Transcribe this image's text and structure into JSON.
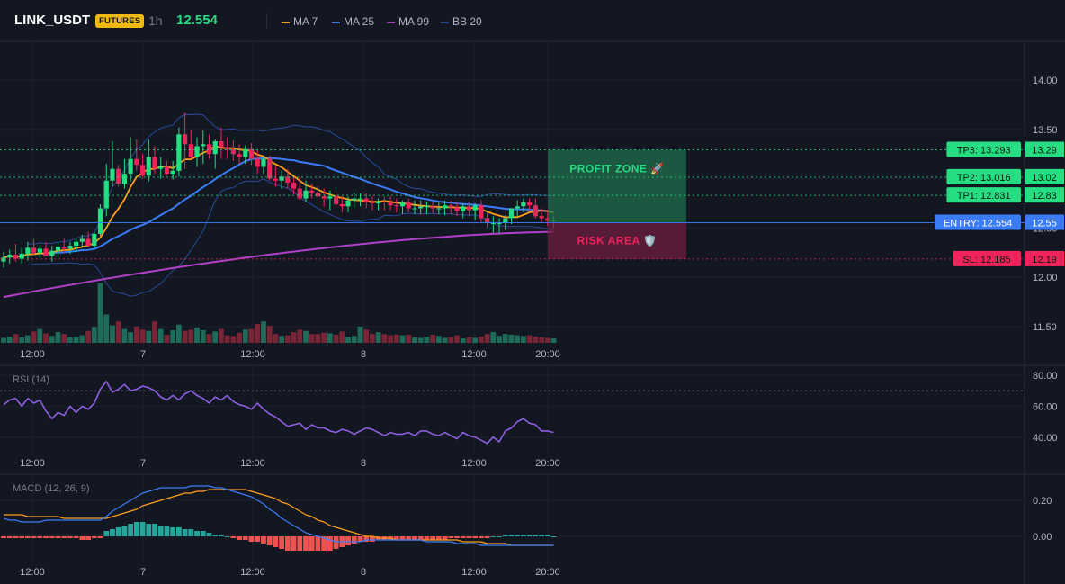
{
  "header": {
    "symbol": "LINK_USDT",
    "badge": "FUTURES",
    "timeframe": "1h",
    "price": "12.554",
    "legend": [
      {
        "label": "MA 7",
        "color": "#ff9f1a"
      },
      {
        "label": "MA 25",
        "color": "#3b7cf6"
      },
      {
        "label": "MA 99",
        "color": "#b140c9"
      },
      {
        "label": "BB 20",
        "color": "#2b4a9a"
      }
    ]
  },
  "colors": {
    "up": "#26de81",
    "down": "#f0245a",
    "vol_up": "#1f6b5a",
    "vol_down": "#7a2536",
    "grid": "#1c2030",
    "axis": "#2a2e39",
    "bb": "#2b4a9a",
    "ma7": "#ff9f1a",
    "ma25": "#3b7cf6",
    "ma99": "#b140c9",
    "rsi": "#8e5fe0",
    "macd": "#3b7cf6",
    "signal": "#ff9f1a",
    "hist_pos": "#26a69a",
    "hist_neg": "#ef5350"
  },
  "chart_data": [
    {
      "type": "candlestick",
      "title": "LINK_USDT",
      "ylim": [
        11.35,
        14.33
      ],
      "price_ticks": [
        "14.00",
        "13.50",
        "13.00",
        "12.50",
        "12.00",
        "11.50"
      ],
      "x_ticks": [
        "12:00",
        "7",
        "12:00",
        "8",
        "12:00",
        "20:00"
      ],
      "series": [
        {
          "name": "candles",
          "open": [
            12.16,
            12.2,
            12.23,
            12.19,
            12.24,
            12.3,
            12.25,
            12.29,
            12.22,
            12.27,
            12.31,
            12.29,
            12.32,
            12.36,
            12.39,
            12.32,
            12.44,
            12.7,
            12.98,
            13.1,
            12.95,
            13.05,
            13.2,
            13.14,
            13.03,
            13.22,
            13.1,
            13.12,
            13.05,
            13.08,
            13.45,
            13.35,
            13.22,
            13.33,
            13.35,
            13.25,
            13.38,
            13.32,
            13.3,
            13.25,
            13.22,
            13.3,
            13.2,
            13.12,
            13.2,
            13.0,
            12.98,
            13.02,
            12.96,
            12.9,
            12.8,
            12.88,
            12.86,
            12.82,
            12.8,
            12.82,
            12.74,
            12.72,
            12.78,
            12.8,
            12.8,
            12.76,
            12.75,
            12.77,
            12.76,
            12.73,
            12.72,
            12.76,
            12.7,
            12.7,
            12.72,
            12.72,
            12.7,
            12.7,
            12.73,
            12.71,
            12.67,
            12.72,
            12.68,
            12.73,
            12.6,
            12.55,
            12.55,
            12.55,
            12.6,
            12.7,
            12.72,
            12.76,
            12.73,
            12.62,
            12.6,
            12.57
          ],
          "high": [
            12.26,
            12.28,
            12.34,
            12.3,
            12.36,
            12.39,
            12.33,
            12.36,
            12.32,
            12.36,
            12.39,
            12.36,
            12.4,
            12.43,
            12.46,
            12.46,
            12.74,
            13.15,
            13.38,
            13.14,
            13.2,
            13.42,
            13.4,
            13.25,
            13.4,
            13.33,
            13.22,
            13.18,
            13.18,
            13.52,
            13.67,
            13.5,
            13.42,
            13.49,
            13.45,
            13.4,
            13.52,
            13.42,
            13.39,
            13.35,
            13.34,
            13.36,
            13.3,
            13.23,
            13.23,
            13.12,
            13.08,
            13.1,
            13.02,
            13.02,
            12.98,
            12.95,
            12.92,
            12.9,
            12.88,
            12.88,
            12.82,
            12.82,
            12.86,
            12.85,
            12.85,
            12.82,
            12.8,
            12.82,
            12.82,
            12.8,
            12.78,
            12.8,
            12.78,
            12.78,
            12.77,
            12.77,
            12.76,
            12.78,
            12.78,
            12.76,
            12.75,
            12.76,
            12.75,
            12.78,
            12.66,
            12.62,
            12.6,
            12.63,
            12.7,
            12.78,
            12.8,
            12.8,
            12.8,
            12.7,
            12.66,
            12.62
          ],
          "low": [
            12.1,
            12.14,
            12.16,
            12.14,
            12.17,
            12.23,
            12.2,
            12.22,
            12.16,
            12.2,
            12.25,
            12.24,
            12.26,
            12.3,
            12.32,
            12.3,
            12.39,
            12.62,
            12.92,
            12.92,
            12.9,
            12.97,
            13.08,
            13.0,
            12.97,
            13.05,
            13.0,
            13.03,
            12.99,
            13.02,
            13.1,
            13.2,
            13.12,
            13.15,
            13.2,
            13.1,
            13.2,
            13.2,
            13.18,
            13.15,
            13.15,
            13.14,
            13.05,
            13.05,
            12.98,
            12.92,
            12.9,
            12.9,
            12.84,
            12.78,
            12.76,
            12.8,
            12.78,
            12.72,
            12.68,
            12.7,
            12.66,
            12.66,
            12.7,
            12.72,
            12.7,
            12.68,
            12.68,
            12.68,
            12.68,
            12.66,
            12.64,
            12.66,
            12.64,
            12.64,
            12.64,
            12.65,
            12.64,
            12.63,
            12.64,
            12.62,
            12.6,
            12.62,
            12.58,
            12.56,
            12.5,
            12.45,
            12.45,
            12.48,
            12.54,
            12.62,
            12.66,
            12.68,
            12.6,
            12.55,
            12.52,
            12.5
          ],
          "close": [
            12.2,
            12.23,
            12.19,
            12.24,
            12.3,
            12.25,
            12.29,
            12.22,
            12.27,
            12.31,
            12.29,
            12.32,
            12.36,
            12.39,
            12.32,
            12.44,
            12.7,
            12.98,
            13.1,
            12.95,
            13.05,
            13.2,
            13.14,
            13.03,
            13.22,
            13.1,
            13.12,
            13.05,
            13.08,
            13.45,
            13.35,
            13.22,
            13.33,
            13.35,
            13.25,
            13.38,
            13.32,
            13.3,
            13.25,
            13.22,
            13.3,
            13.2,
            13.12,
            13.2,
            13.0,
            12.98,
            13.02,
            12.96,
            12.9,
            12.8,
            12.88,
            12.86,
            12.82,
            12.8,
            12.82,
            12.74,
            12.72,
            12.78,
            12.8,
            12.8,
            12.76,
            12.75,
            12.77,
            12.76,
            12.73,
            12.72,
            12.76,
            12.7,
            12.7,
            12.72,
            12.72,
            12.7,
            12.7,
            12.73,
            12.71,
            12.67,
            12.72,
            12.68,
            12.73,
            12.6,
            12.55,
            12.55,
            12.55,
            12.6,
            12.7,
            12.72,
            12.76,
            12.73,
            12.62,
            12.6,
            12.57,
            12.58
          ]
        }
      ],
      "volume": [
        8,
        10,
        14,
        9,
        12,
        18,
        22,
        15,
        11,
        17,
        14,
        9,
        10,
        12,
        19,
        25,
        95,
        45,
        28,
        34,
        22,
        17,
        26,
        21,
        19,
        34,
        22,
        13,
        20,
        29,
        19,
        21,
        24,
        20,
        14,
        18,
        22,
        12,
        11,
        16,
        21,
        22,
        30,
        34,
        27,
        14,
        11,
        12,
        17,
        21,
        19,
        14,
        14,
        16,
        15,
        13,
        18,
        10,
        11,
        26,
        21,
        14,
        17,
        14,
        12,
        13,
        12,
        13,
        9,
        8,
        10,
        13,
        11,
        8,
        9,
        12,
        7,
        9,
        8,
        10,
        14,
        17,
        11,
        14,
        13,
        12,
        11,
        12,
        10,
        9,
        8,
        7
      ],
      "annotations": [
        {
          "label": "TP3: 13.293",
          "axis_label": "13.29",
          "price": 13.293,
          "color": "#26de81"
        },
        {
          "label": "TP2: 13.016",
          "axis_label": "13.02",
          "price": 13.016,
          "color": "#26de81"
        },
        {
          "label": "TP1: 12.831",
          "axis_label": "12.83",
          "price": 12.831,
          "color": "#26de81"
        },
        {
          "label": "ENTRY: 12.554",
          "axis_label": "12.55",
          "price": 12.554,
          "color": "#3b7cf6"
        },
        {
          "label": "SL: 12.185",
          "axis_label": "12.19",
          "price": 12.185,
          "color": "#f0245a"
        }
      ],
      "zones": {
        "profit": "PROFIT ZONE 🚀",
        "risk": "RISK AREA 🛡️"
      }
    },
    {
      "type": "line",
      "title": "RSI (14)",
      "ylim": [
        34,
        88
      ],
      "y_ticks": [
        "80.00",
        "60.00",
        "40.00"
      ],
      "overbought": 70,
      "series": [
        {
          "values": [
            61,
            64,
            65,
            60,
            65,
            62,
            64,
            57,
            52,
            56,
            54,
            60,
            56,
            60,
            58,
            62,
            71,
            76,
            69,
            71,
            74,
            70,
            71,
            73,
            72,
            70,
            66,
            64,
            67,
            64,
            68,
            70,
            67,
            65,
            62,
            66,
            64,
            67,
            63,
            61,
            60,
            58,
            62,
            58,
            55,
            53,
            50,
            47,
            48,
            49,
            45,
            48,
            46,
            46,
            44,
            43,
            45,
            44,
            42,
            44,
            46,
            45,
            43,
            41,
            43,
            42,
            42,
            43,
            41,
            44,
            44,
            42,
            41,
            43,
            41,
            39,
            43,
            41,
            40,
            38,
            36,
            40,
            37,
            44,
            46,
            50,
            52,
            49,
            48,
            44,
            44,
            43
          ]
        }
      ]
    },
    {
      "type": "line",
      "title": "MACD (12, 26, 9)",
      "ylim": [
        -0.14,
        0.3
      ],
      "y_ticks": [
        "0.20",
        "0.00"
      ],
      "series": [
        {
          "name": "macd",
          "values": [
            0.1,
            0.09,
            0.09,
            0.08,
            0.08,
            0.08,
            0.08,
            0.09,
            0.09,
            0.09,
            0.09,
            0.09,
            0.09,
            0.09,
            0.09,
            0.09,
            0.09,
            0.11,
            0.14,
            0.16,
            0.18,
            0.2,
            0.22,
            0.24,
            0.25,
            0.26,
            0.27,
            0.27,
            0.27,
            0.27,
            0.27,
            0.28,
            0.28,
            0.28,
            0.28,
            0.27,
            0.27,
            0.26,
            0.25,
            0.24,
            0.23,
            0.22,
            0.2,
            0.18,
            0.15,
            0.13,
            0.1,
            0.08,
            0.06,
            0.04,
            0.02,
            0.01,
            0.0,
            -0.01,
            -0.02,
            -0.03,
            -0.03,
            -0.03,
            -0.03,
            -0.03,
            -0.02,
            -0.02,
            -0.02,
            -0.02,
            -0.02,
            -0.02,
            -0.02,
            -0.02,
            -0.02,
            -0.02,
            -0.03,
            -0.03,
            -0.03,
            -0.03,
            -0.03,
            -0.04,
            -0.04,
            -0.04,
            -0.04,
            -0.05,
            -0.05,
            -0.05,
            -0.05,
            -0.05,
            -0.05,
            -0.05,
            -0.05,
            -0.05,
            -0.05,
            -0.05,
            -0.05,
            -0.05
          ]
        },
        {
          "name": "signal",
          "values": [
            0.12,
            0.12,
            0.12,
            0.12,
            0.11,
            0.11,
            0.11,
            0.11,
            0.11,
            0.11,
            0.1,
            0.1,
            0.1,
            0.1,
            0.1,
            0.1,
            0.1,
            0.1,
            0.11,
            0.12,
            0.13,
            0.14,
            0.15,
            0.17,
            0.18,
            0.19,
            0.2,
            0.21,
            0.22,
            0.23,
            0.24,
            0.24,
            0.25,
            0.25,
            0.26,
            0.26,
            0.26,
            0.26,
            0.26,
            0.26,
            0.26,
            0.25,
            0.24,
            0.23,
            0.22,
            0.21,
            0.19,
            0.18,
            0.16,
            0.14,
            0.12,
            0.11,
            0.09,
            0.08,
            0.06,
            0.05,
            0.04,
            0.03,
            0.02,
            0.01,
            0.0,
            0.0,
            -0.01,
            -0.01,
            -0.01,
            -0.02,
            -0.02,
            -0.02,
            -0.02,
            -0.02,
            -0.02,
            -0.02,
            -0.02,
            -0.02,
            -0.02,
            -0.02,
            -0.03,
            -0.03,
            -0.03,
            -0.03,
            -0.04,
            -0.04,
            -0.04,
            -0.04,
            -0.05,
            -0.05,
            -0.05,
            -0.05,
            -0.05,
            -0.05,
            -0.05,
            -0.05
          ]
        }
      ],
      "histogram": [
        -0.01,
        -0.01,
        -0.01,
        -0.01,
        -0.01,
        -0.01,
        -0.01,
        -0.01,
        -0.01,
        -0.01,
        -0.01,
        -0.01,
        -0.01,
        -0.02,
        -0.02,
        -0.01,
        -0.01,
        0.03,
        0.04,
        0.05,
        0.06,
        0.07,
        0.08,
        0.08,
        0.07,
        0.07,
        0.06,
        0.06,
        0.05,
        0.05,
        0.04,
        0.04,
        0.03,
        0.03,
        0.02,
        0.01,
        0.01,
        0.0,
        -0.01,
        -0.02,
        -0.02,
        -0.03,
        -0.03,
        -0.04,
        -0.05,
        -0.06,
        -0.07,
        -0.08,
        -0.08,
        -0.08,
        -0.08,
        -0.08,
        -0.08,
        -0.08,
        -0.08,
        -0.07,
        -0.06,
        -0.05,
        -0.04,
        -0.03,
        -0.03,
        -0.03,
        -0.02,
        -0.02,
        -0.02,
        -0.02,
        -0.02,
        -0.02,
        -0.02,
        -0.02,
        -0.02,
        -0.02,
        -0.02,
        -0.02,
        -0.01,
        -0.01,
        -0.01,
        -0.01,
        -0.01,
        -0.01,
        -0.01,
        0.0,
        0.0,
        0.01,
        0.01,
        0.01,
        0.01,
        0.01,
        0.01,
        0.01,
        0.01,
        0.0
      ]
    }
  ]
}
